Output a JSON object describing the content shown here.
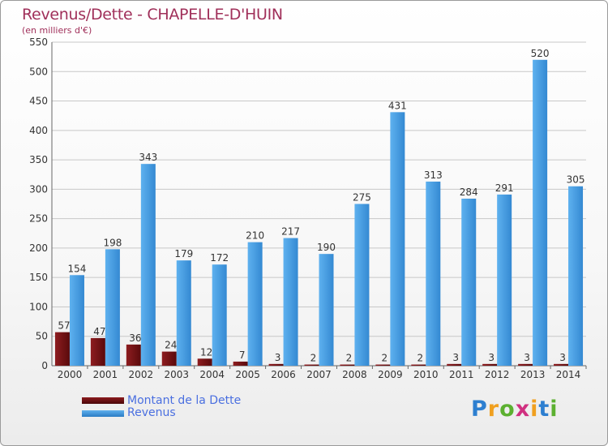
{
  "header": {
    "title": "Revenus/Dette - CHAPELLE-D'HUIN",
    "subtitle": "(en milliers d'€)"
  },
  "legend": [
    {
      "label": "Montant de la Dette",
      "color": "#6b0f12"
    },
    {
      "label": "Revenus",
      "color": "#3d94da"
    }
  ],
  "logo": {
    "letters": [
      "P",
      "r",
      "o",
      "x",
      "i",
      "t",
      "i"
    ],
    "colors": [
      "#2d7fd0",
      "#f0a020",
      "#5cb030",
      "#d03080",
      "#f0a020",
      "#2d7fd0",
      "#5cb030"
    ]
  },
  "chart_data": {
    "type": "bar",
    "title": "Revenus/Dette - CHAPELLE-D'HUIN",
    "subtitle": "(en milliers d'€)",
    "categories": [
      "2000",
      "2001",
      "2002",
      "2003",
      "2004",
      "2005",
      "2006",
      "2007",
      "2008",
      "2009",
      "2010",
      "2011",
      "2012",
      "2013",
      "2014"
    ],
    "series": [
      {
        "name": "Montant de la Dette",
        "color": "#6b0f12",
        "values": [
          57,
          47,
          36,
          24,
          12,
          7,
          3,
          2,
          2,
          2,
          2,
          3,
          3,
          3,
          3
        ]
      },
      {
        "name": "Revenus",
        "color": "#3d94da",
        "values": [
          154,
          198,
          343,
          179,
          172,
          210,
          217,
          190,
          275,
          431,
          313,
          284,
          291,
          520,
          305
        ]
      }
    ],
    "ylim": [
      0,
      550
    ],
    "yticks": [
      0,
      50,
      100,
      150,
      200,
      250,
      300,
      350,
      400,
      450,
      500,
      550
    ],
    "grid": true,
    "legend_position": "bottom-left"
  }
}
